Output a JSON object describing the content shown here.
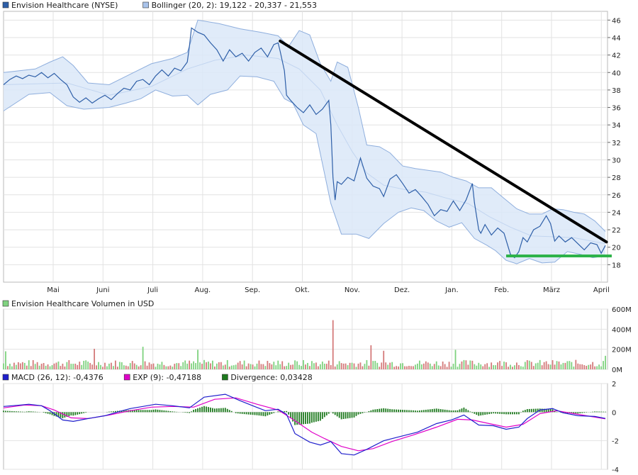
{
  "chart_data": [
    {
      "type": "line",
      "legend": [
        {
          "label": "Envision Healthcare (NYSE)",
          "color": "#2e5fa8"
        },
        {
          "label": "Bollinger (20, 2): 19,122 - 20,337 - 21,553",
          "color": "#a9c3ea"
        }
      ],
      "xlabels": [
        "Mai",
        "Juni",
        "Juli",
        "Aug.",
        "Sep.",
        "Okt.",
        "Nov.",
        "Dez.",
        "Jan.",
        "Feb.",
        "März",
        "April"
      ],
      "y_ticks": [
        "18",
        "20",
        "22",
        "24",
        "26",
        "28",
        "30",
        "32",
        "34",
        "36",
        "38",
        "40",
        "42",
        "44",
        "46"
      ],
      "ylim": [
        16,
        47
      ],
      "grid": true,
      "price_series": [
        [
          0,
          38.6
        ],
        [
          3,
          39.2
        ],
        [
          6,
          39.6
        ],
        [
          9,
          39.3
        ],
        [
          12,
          39.7
        ],
        [
          15,
          39.5
        ],
        [
          18,
          40.0
        ],
        [
          21,
          39.4
        ],
        [
          24,
          39.9
        ],
        [
          27,
          39.2
        ],
        [
          30,
          38.6
        ],
        [
          33,
          37.2
        ],
        [
          36,
          36.6
        ],
        [
          39,
          37.1
        ],
        [
          42,
          36.5
        ],
        [
          45,
          37.0
        ],
        [
          48,
          37.4
        ],
        [
          51,
          36.9
        ],
        [
          54,
          37.6
        ],
        [
          57,
          38.2
        ],
        [
          60,
          38.0
        ],
        [
          63,
          39.0
        ],
        [
          66,
          39.2
        ],
        [
          69,
          38.6
        ],
        [
          72,
          39.6
        ],
        [
          75,
          40.3
        ],
        [
          78,
          39.6
        ],
        [
          81,
          40.5
        ],
        [
          84,
          40.2
        ],
        [
          87,
          41.2
        ],
        [
          88,
          43.0
        ],
        [
          89,
          45.1
        ],
        [
          92,
          44.6
        ],
        [
          95,
          44.3
        ],
        [
          98,
          43.4
        ],
        [
          101,
          42.6
        ],
        [
          104,
          41.3
        ],
        [
          107,
          42.6
        ],
        [
          110,
          41.8
        ],
        [
          113,
          42.2
        ],
        [
          116,
          41.3
        ],
        [
          119,
          42.3
        ],
        [
          122,
          42.8
        ],
        [
          125,
          41.8
        ],
        [
          128,
          43.2
        ],
        [
          130,
          43.4
        ],
        [
          131,
          42.4
        ],
        [
          133,
          40.2
        ],
        [
          134,
          37.4
        ],
        [
          136,
          36.8
        ],
        [
          139,
          36.0
        ],
        [
          142,
          35.4
        ],
        [
          145,
          36.3
        ],
        [
          148,
          35.2
        ],
        [
          151,
          35.8
        ],
        [
          154,
          36.8
        ],
        [
          155,
          34.0
        ],
        [
          156,
          28.0
        ],
        [
          157,
          25.4
        ],
        [
          158,
          27.5
        ],
        [
          160,
          27.2
        ],
        [
          163,
          28.0
        ],
        [
          166,
          27.6
        ],
        [
          169,
          30.2
        ],
        [
          172,
          27.9
        ],
        [
          175,
          27.0
        ],
        [
          178,
          26.7
        ],
        [
          180,
          25.8
        ],
        [
          183,
          27.8
        ],
        [
          186,
          28.3
        ],
        [
          189,
          27.3
        ],
        [
          192,
          26.2
        ],
        [
          195,
          26.6
        ],
        [
          198,
          25.8
        ],
        [
          201,
          24.9
        ],
        [
          204,
          23.6
        ],
        [
          207,
          24.3
        ],
        [
          210,
          24.1
        ],
        [
          213,
          25.3
        ],
        [
          216,
          24.2
        ],
        [
          219,
          25.4
        ],
        [
          222,
          27.3
        ],
        [
          223,
          25.1
        ],
        [
          225,
          22.0
        ],
        [
          226,
          21.6
        ],
        [
          228,
          22.6
        ],
        [
          231,
          21.4
        ],
        [
          234,
          22.2
        ],
        [
          237,
          21.6
        ],
        [
          240,
          19.2
        ],
        [
          242,
          18.8
        ],
        [
          244,
          19.5
        ],
        [
          246,
          21.1
        ],
        [
          248,
          20.6
        ],
        [
          251,
          22.0
        ],
        [
          254,
          22.4
        ],
        [
          257,
          23.6
        ],
        [
          259,
          22.7
        ],
        [
          261,
          20.7
        ],
        [
          263,
          21.3
        ],
        [
          266,
          20.6
        ],
        [
          269,
          21.1
        ],
        [
          272,
          20.4
        ],
        [
          275,
          19.7
        ],
        [
          278,
          20.5
        ],
        [
          281,
          20.3
        ],
        [
          283,
          19.3
        ],
        [
          285,
          20.2
        ]
      ],
      "bollinger_upper": [
        [
          0,
          40.0
        ],
        [
          15,
          40.4
        ],
        [
          22,
          41.2
        ],
        [
          28,
          41.8
        ],
        [
          33,
          40.8
        ],
        [
          40,
          38.8
        ],
        [
          50,
          38.6
        ],
        [
          60,
          39.8
        ],
        [
          70,
          41.0
        ],
        [
          80,
          41.6
        ],
        [
          87,
          42.3
        ],
        [
          92,
          46.0
        ],
        [
          102,
          45.6
        ],
        [
          112,
          45.0
        ],
        [
          122,
          44.6
        ],
        [
          130,
          44.2
        ],
        [
          135,
          43.0
        ],
        [
          140,
          44.8
        ],
        [
          145,
          44.3
        ],
        [
          150,
          41.0
        ],
        [
          155,
          39.0
        ],
        [
          158,
          41.2
        ],
        [
          163,
          40.6
        ],
        [
          168,
          36.0
        ],
        [
          172,
          31.7
        ],
        [
          178,
          31.5
        ],
        [
          183,
          30.8
        ],
        [
          189,
          29.3
        ],
        [
          195,
          29.0
        ],
        [
          201,
          28.8
        ],
        [
          207,
          28.6
        ],
        [
          213,
          28.0
        ],
        [
          219,
          27.6
        ],
        [
          225,
          26.8
        ],
        [
          231,
          26.8
        ],
        [
          237,
          25.6
        ],
        [
          243,
          24.4
        ],
        [
          249,
          23.8
        ],
        [
          255,
          23.8
        ],
        [
          260,
          24.4
        ],
        [
          265,
          24.3
        ],
        [
          270,
          24.0
        ],
        [
          275,
          23.8
        ],
        [
          280,
          23.0
        ],
        [
          285,
          21.8
        ]
      ],
      "bollinger_lower": [
        [
          0,
          35.6
        ],
        [
          12,
          37.5
        ],
        [
          22,
          37.7
        ],
        [
          30,
          36.2
        ],
        [
          38,
          35.8
        ],
        [
          50,
          36.0
        ],
        [
          58,
          36.5
        ],
        [
          65,
          37.0
        ],
        [
          72,
          38.0
        ],
        [
          80,
          37.3
        ],
        [
          87,
          37.4
        ],
        [
          92,
          36.3
        ],
        [
          98,
          37.5
        ],
        [
          106,
          38.0
        ],
        [
          112,
          39.6
        ],
        [
          120,
          39.5
        ],
        [
          128,
          39.0
        ],
        [
          133,
          37.0
        ],
        [
          137,
          36.5
        ],
        [
          142,
          34.0
        ],
        [
          148,
          33.0
        ],
        [
          155,
          25.0
        ],
        [
          160,
          21.5
        ],
        [
          167,
          21.5
        ],
        [
          173,
          21.0
        ],
        [
          180,
          22.7
        ],
        [
          187,
          24.0
        ],
        [
          193,
          24.5
        ],
        [
          199,
          24.2
        ],
        [
          205,
          23.0
        ],
        [
          211,
          22.3
        ],
        [
          217,
          22.8
        ],
        [
          223,
          21.0
        ],
        [
          229,
          20.2
        ],
        [
          233,
          19.6
        ],
        [
          238,
          18.5
        ],
        [
          243,
          18.1
        ],
        [
          249,
          18.7
        ],
        [
          255,
          18.2
        ],
        [
          261,
          18.3
        ],
        [
          267,
          19.5
        ],
        [
          273,
          19.2
        ],
        [
          279,
          18.8
        ],
        [
          285,
          19.0
        ]
      ],
      "bollinger_middle": [
        [
          0,
          38.6
        ],
        [
          30,
          38.8
        ],
        [
          50,
          37.4
        ],
        [
          70,
          38.4
        ],
        [
          87,
          40.4
        ],
        [
          100,
          41.4
        ],
        [
          115,
          42.0
        ],
        [
          130,
          41.6
        ],
        [
          140,
          40.4
        ],
        [
          150,
          38.0
        ],
        [
          158,
          34.0
        ],
        [
          165,
          31.0
        ],
        [
          172,
          28.5
        ],
        [
          180,
          27.1
        ],
        [
          190,
          26.6
        ],
        [
          200,
          26.3
        ],
        [
          210,
          25.6
        ],
        [
          220,
          25.0
        ],
        [
          230,
          23.5
        ],
        [
          240,
          22.3
        ],
        [
          250,
          21.3
        ],
        [
          260,
          21.2
        ],
        [
          270,
          21.1
        ],
        [
          285,
          20.4
        ]
      ]
    },
    {
      "type": "bar",
      "legend": [
        {
          "label": "Envision Healthcare Volumen in USD",
          "color": "#7fd27f"
        }
      ],
      "y_ticks": [
        "0M",
        "200M",
        "400M",
        "600M"
      ],
      "ylim": [
        0,
        600
      ],
      "spike_values": [
        {
          "x": 156,
          "value": 490,
          "up": false
        },
        {
          "x": 174,
          "value": 240,
          "up": false
        },
        {
          "x": 180,
          "value": 185,
          "up": false
        },
        {
          "x": 66,
          "value": 225,
          "up": true
        },
        {
          "x": 43,
          "value": 205,
          "up": false
        },
        {
          "x": 1,
          "value": 180,
          "up": true
        },
        {
          "x": 92,
          "value": 195,
          "up": true
        },
        {
          "x": 214,
          "value": 195,
          "up": true
        },
        {
          "x": 285,
          "value": 135,
          "up": true
        }
      ]
    },
    {
      "type": "line",
      "legend": [
        {
          "label": "MACD (26, 12): -0,4376",
          "color": "#1f1fcc"
        },
        {
          "label": "EXP (9): -0,47188",
          "color": "#e000c8"
        },
        {
          "label": "Divergence: 0,03428",
          "color": "#1e7a1e"
        }
      ],
      "y_ticks": [
        "-4",
        "-2",
        "0",
        "2"
      ],
      "ylim": [
        -4,
        2
      ],
      "macd": [
        [
          0,
          0.4
        ],
        [
          8,
          0.5
        ],
        [
          12,
          0.55
        ],
        [
          18,
          0.45
        ],
        [
          22,
          0.1
        ],
        [
          28,
          -0.55
        ],
        [
          33,
          -0.65
        ],
        [
          40,
          -0.45
        ],
        [
          48,
          -0.25
        ],
        [
          55,
          0.05
        ],
        [
          60,
          0.25
        ],
        [
          66,
          0.4
        ],
        [
          72,
          0.55
        ],
        [
          80,
          0.45
        ],
        [
          88,
          0.3
        ],
        [
          95,
          1.05
        ],
        [
          105,
          1.25
        ],
        [
          112,
          0.8
        ],
        [
          118,
          0.45
        ],
        [
          124,
          0.1
        ],
        [
          130,
          0.2
        ],
        [
          134,
          -0.15
        ],
        [
          138,
          -1.5
        ],
        [
          145,
          -2.1
        ],
        [
          150,
          -2.3
        ],
        [
          155,
          -2.05
        ],
        [
          160,
          -2.9
        ],
        [
          166,
          -3.0
        ],
        [
          172,
          -2.6
        ],
        [
          180,
          -2.0
        ],
        [
          188,
          -1.7
        ],
        [
          196,
          -1.4
        ],
        [
          205,
          -0.8
        ],
        [
          212,
          -0.55
        ],
        [
          218,
          -0.2
        ],
        [
          225,
          -0.9
        ],
        [
          232,
          -0.95
        ],
        [
          238,
          -1.2
        ],
        [
          244,
          -1.05
        ],
        [
          248,
          -0.45
        ],
        [
          254,
          0.15
        ],
        [
          260,
          0.25
        ],
        [
          265,
          -0.05
        ],
        [
          272,
          -0.25
        ],
        [
          280,
          -0.3
        ],
        [
          285,
          -0.44
        ]
      ],
      "signal": [
        [
          0,
          0.3
        ],
        [
          10,
          0.5
        ],
        [
          18,
          0.45
        ],
        [
          24,
          0.15
        ],
        [
          32,
          -0.4
        ],
        [
          40,
          -0.45
        ],
        [
          50,
          -0.2
        ],
        [
          60,
          0.1
        ],
        [
          70,
          0.35
        ],
        [
          80,
          0.4
        ],
        [
          90,
          0.35
        ],
        [
          100,
          0.9
        ],
        [
          110,
          1.0
        ],
        [
          120,
          0.55
        ],
        [
          130,
          0.15
        ],
        [
          138,
          -0.6
        ],
        [
          146,
          -1.4
        ],
        [
          152,
          -1.85
        ],
        [
          160,
          -2.4
        ],
        [
          168,
          -2.7
        ],
        [
          175,
          -2.55
        ],
        [
          184,
          -2.05
        ],
        [
          194,
          -1.6
        ],
        [
          205,
          -1.05
        ],
        [
          215,
          -0.5
        ],
        [
          222,
          -0.55
        ],
        [
          230,
          -0.8
        ],
        [
          238,
          -1.05
        ],
        [
          246,
          -0.85
        ],
        [
          254,
          -0.1
        ],
        [
          262,
          0.1
        ],
        [
          270,
          -0.1
        ],
        [
          278,
          -0.3
        ],
        [
          285,
          -0.47
        ]
      ]
    }
  ]
}
